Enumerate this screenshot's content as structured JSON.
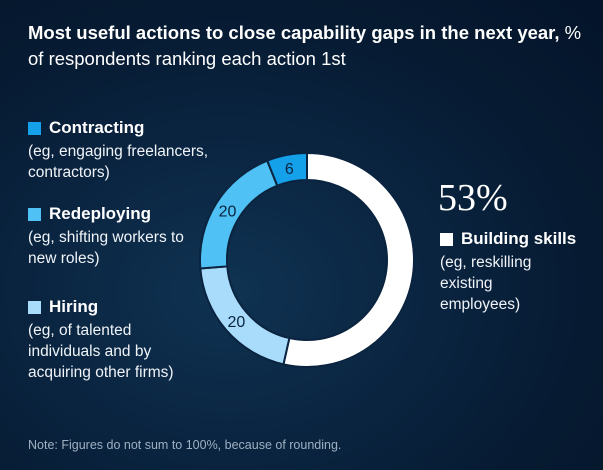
{
  "title": {
    "bold": "Most useful actions to close capability gaps in the next year,",
    "rest": " % of respondents ranking each action 1st"
  },
  "note": "Note: Figures do not sum to 100%, because of rounding.",
  "chart_data": {
    "type": "pie",
    "donut": true,
    "slices": [
      {
        "key": "building",
        "label": "Building skills",
        "desc": "(eg, reskilling existing employees)",
        "value": 53,
        "display": "53%",
        "color": "#ffffff"
      },
      {
        "key": "hiring",
        "label": "Hiring",
        "desc": "(eg, of talented individuals and by acquiring other firms)",
        "value": 20,
        "display": "20",
        "color": "#a9dcfb"
      },
      {
        "key": "redeploying",
        "label": "Redeploying",
        "desc": "(eg, shifting workers to new roles)",
        "value": 20,
        "display": "20",
        "color": "#4fc1f4"
      },
      {
        "key": "contracting",
        "label": "Contracting",
        "desc": "(eg, engaging freelancers, contractors)",
        "value": 6,
        "display": "6",
        "color": "#15a0ea"
      }
    ]
  }
}
